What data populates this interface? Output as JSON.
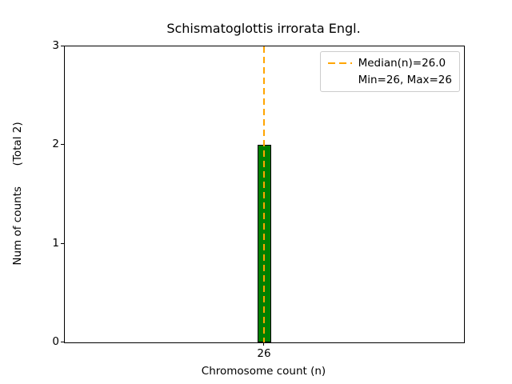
{
  "title": "Schismatoglottis irrorata Engl.",
  "x_axis": {
    "label": "Chromosome count (n)",
    "ticks": [
      "26"
    ]
  },
  "y_axis": {
    "label": "Num of counts      (Total 2)",
    "ticks": [
      "0",
      "1",
      "2",
      "3"
    ]
  },
  "legend": {
    "median_label": "Median(n)=26.0",
    "minmax_label": "Min=26, Max=26"
  },
  "colors": {
    "bar_fill": "#008000",
    "bar_edge": "#000000",
    "median_line": "#FFA500"
  },
  "chart_data": {
    "type": "bar",
    "title": "Schismatoglottis irrorata Engl.",
    "xlabel": "Chromosome count (n)",
    "ylabel": "Num of counts (Total 2)",
    "categories": [
      26
    ],
    "values": [
      2
    ],
    "ylim": [
      0,
      3
    ],
    "total_counts": 2,
    "median_n": 26.0,
    "min_n": 26,
    "max_n": 26,
    "legend_entries": [
      "Median(n)=26.0",
      "Min=26, Max=26"
    ],
    "legend_position": "upper right",
    "grid": false,
    "median_vline_x": 26
  }
}
